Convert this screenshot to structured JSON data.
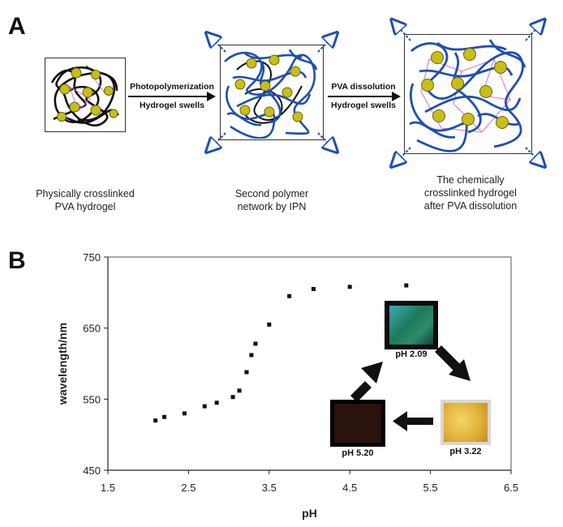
{
  "panel_a": {
    "letter": "A",
    "arrow1_label_top": "Photopolymerization",
    "arrow1_label_bottom": "Hydrogel swells",
    "arrow2_label_top": "PVA dissolution",
    "arrow2_label_bottom": "Hydrogel swells",
    "caption1_line1": "Physically crosslinked",
    "caption1_line2": "PVA hydrogel",
    "caption2_line1": "Second polymer",
    "caption2_line2": "network by IPN",
    "caption3_line1": "The chemically",
    "caption3_line2": "crosslinked hydrogel",
    "caption3_line3": "after PVA dissolution",
    "colors": {
      "pva_chain": "#111111",
      "ipn_chain": "#1f4fb0",
      "bead": "#c7be1a",
      "crosslink": "#e06ad8"
    }
  },
  "panel_b": {
    "letter": "B",
    "inset": {
      "ph1": "pH 2.09",
      "ph2": "pH 3.22",
      "ph3": "pH 5.20",
      "colors": {
        "ph1": "#1f7a5a",
        "ph2": "#e2b23a",
        "ph3": "#2a120e"
      }
    }
  },
  "chart_data": {
    "type": "scatter",
    "xlabel": "pH",
    "ylabel": "wavelength/nm",
    "xlim": [
      1.5,
      6.5
    ],
    "ylim": [
      450,
      750
    ],
    "xticks": [
      1.5,
      2.5,
      3.5,
      4.5,
      5.5,
      6.5
    ],
    "yticks": [
      450,
      550,
      650,
      750
    ],
    "xtick_labels": [
      "1.5",
      "2.5",
      "3.5",
      "4.5",
      "5.5",
      "6.5"
    ],
    "ytick_labels": [
      "450",
      "550",
      "650",
      "750"
    ],
    "grid": false,
    "series": [
      {
        "x": [
          2.09,
          2.2,
          2.45,
          2.7,
          2.85,
          3.05,
          3.13,
          3.22,
          3.28,
          3.33,
          3.5,
          3.75,
          4.05,
          4.5,
          5.2
        ],
        "y": [
          520,
          525,
          530,
          540,
          545,
          553,
          562,
          588,
          612,
          628,
          655,
          695,
          705,
          708,
          710
        ]
      }
    ]
  }
}
